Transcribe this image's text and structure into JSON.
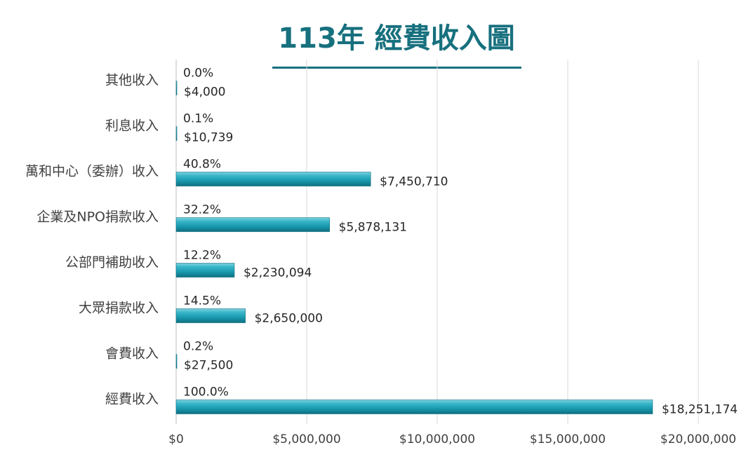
{
  "chart_data": {
    "type": "bar",
    "orientation": "horizontal",
    "title": "113年 經費收入圖",
    "xlabel": "",
    "ylabel": "",
    "xlim": [
      0,
      20000000
    ],
    "grid": true,
    "legend": "none",
    "bar_color": "#1a9bb0",
    "title_color": "#17707e",
    "x_ticks": [
      "$0",
      "$5,000,000",
      "$10,000,000",
      "$15,000,000",
      "$20,000,000"
    ],
    "x_tick_values": [
      0,
      5000000,
      10000000,
      15000000,
      20000000
    ],
    "categories": [
      "其他收入",
      "利息收入",
      "萬和中心（委辦）收入",
      "企業及NPO捐款收入",
      "公部門補助收入",
      "大眾捐款收入",
      "會費收入",
      "經費收入"
    ],
    "values": [
      4000,
      10739,
      7450710,
      5878131,
      2230094,
      2650000,
      27500,
      18251174
    ],
    "value_labels": [
      "$4,000",
      "$10,739",
      "$7,450,710",
      "$5,878,131",
      "$2,230,094",
      "$2,650,000",
      "$27,500",
      "$18,251,174"
    ],
    "percent_labels": [
      "0.0%",
      "0.1%",
      "40.8%",
      "32.2%",
      "12.2%",
      "14.5%",
      "0.2%",
      "100.0%"
    ]
  }
}
